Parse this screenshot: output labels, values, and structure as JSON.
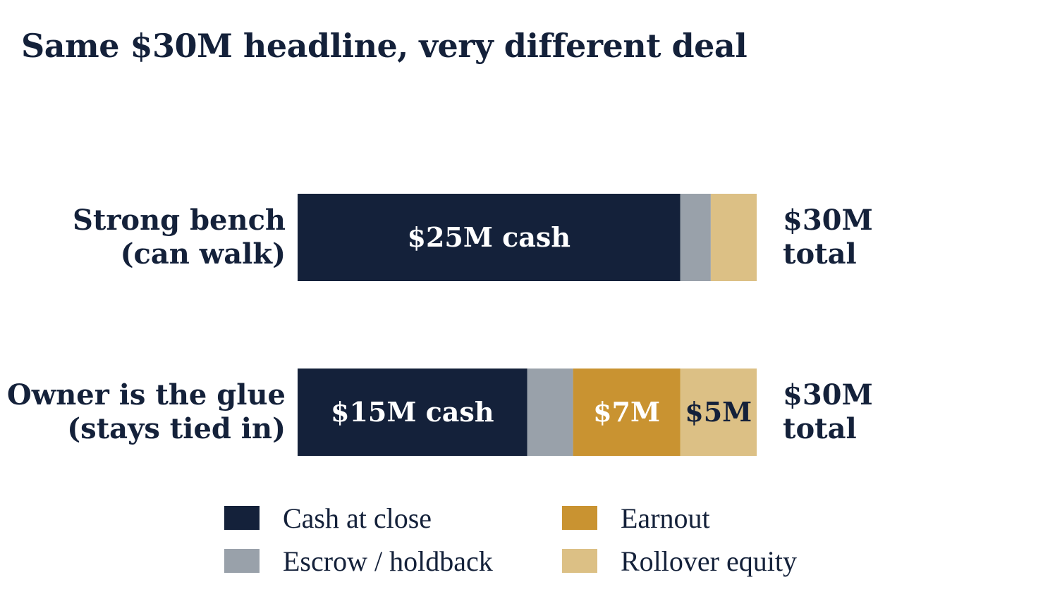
{
  "title": "Same $30M headline, very different deal",
  "colors": {
    "cash": "#14213a",
    "escrow": "#99a1aa",
    "earnout": "#c99331",
    "rollover": "#dcc085",
    "text": "#14213a"
  },
  "chart_data": {
    "type": "bar",
    "orientation": "horizontal",
    "stacked": true,
    "title": "Same $30M headline, very different deal",
    "xlim": [
      0,
      30
    ],
    "unit": "$M",
    "grid": false,
    "legend_position": "bottom",
    "categories": [
      [
        "Strong bench",
        "(can walk)"
      ],
      [
        "Owner is the glue",
        "(stays tied in)"
      ]
    ],
    "series": [
      {
        "name": "Cash at close",
        "key": "cash",
        "values": [
          25,
          15
        ],
        "labels": [
          "$25M cash",
          "$15M cash"
        ],
        "label_color": "#ffffff"
      },
      {
        "name": "Escrow / holdback",
        "key": "escrow",
        "values": [
          2,
          3
        ],
        "labels": [
          "",
          ""
        ],
        "label_color": "#ffffff"
      },
      {
        "name": "Earnout",
        "key": "earnout",
        "values": [
          0,
          7
        ],
        "labels": [
          "",
          "$7M"
        ],
        "label_color": "#ffffff"
      },
      {
        "name": "Rollover equity",
        "key": "rollover",
        "values": [
          3,
          5
        ],
        "labels": [
          "",
          "$5M"
        ],
        "label_color": "#14213a"
      }
    ],
    "totals": [
      [
        "$30M",
        "total"
      ],
      [
        "$30M",
        "total"
      ]
    ],
    "legend_layout": [
      [
        "Cash at close",
        "Earnout"
      ],
      [
        "Escrow / holdback",
        "Rollover equity"
      ]
    ]
  }
}
